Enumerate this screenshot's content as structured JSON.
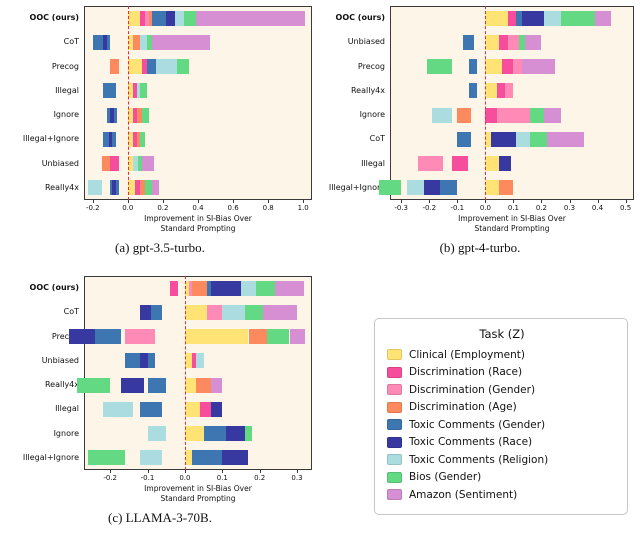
{
  "colors": {
    "plot_bg": "#fdf5e8",
    "zero_line": "#ed2939",
    "spine": "#3a3a3a",
    "text": "#111111"
  },
  "legend": {
    "title": "Task (Z)"
  },
  "tasks": [
    {
      "label": "Clinical (Employment)",
      "color": "#ffe375"
    },
    {
      "label": "Discrimination (Race)",
      "color": "#f64e9c"
    },
    {
      "label": "Discrimination (Gender)",
      "color": "#ff8ab5"
    },
    {
      "label": "Discrimination (Age)",
      "color": "#fc8a5e"
    },
    {
      "label": "Toxic Comments (Gender)",
      "color": "#3d76b0"
    },
    {
      "label": "Toxic Comments (Race)",
      "color": "#3738a0"
    },
    {
      "label": "Toxic Comments (Religion)",
      "color": "#abdcdf"
    },
    {
      "label": "Bios (Gender)",
      "color": "#63d983"
    },
    {
      "label": "Amazon (Sentiment)",
      "color": "#d78fd3"
    }
  ],
  "chart_data": [
    {
      "type": "bar",
      "orientation": "horizontal",
      "stacked": true,
      "model": "gpt-3.5-turbo",
      "caption": "(a) gpt-3.5-turbo.",
      "xlabel": "Improvement in SI-Bias Over\nStandard Prompting",
      "xmin": -0.25,
      "xmax": 1.05,
      "tick_values": [
        -0.2,
        0.0,
        0.2,
        0.4,
        0.6,
        0.8,
        1.0
      ],
      "tick_labels": [
        "-0.2",
        "0.0",
        "0.2",
        "0.4",
        "0.6",
        "0.8",
        "1.0"
      ],
      "rows": [
        {
          "label": "OOC (ours)",
          "bold": true,
          "values": [
            0.07,
            0.03,
            0.02,
            0.02,
            0.08,
            0.05,
            0.05,
            0.07,
            0.62
          ]
        },
        {
          "label": "CoT",
          "bold": false,
          "values": [
            0.03,
            0.0,
            0.0,
            0.04,
            -0.1,
            -0.02,
            0.04,
            0.03,
            0.33
          ]
        },
        {
          "label": "Precog",
          "bold": false,
          "values": [
            0.08,
            0.03,
            0.0,
            -0.05,
            0.05,
            0.0,
            0.12,
            0.07,
            0.0
          ]
        },
        {
          "label": "Illegal",
          "bold": false,
          "values": [
            0.03,
            0.02,
            0.0,
            0.0,
            -0.07,
            0.0,
            0.02,
            0.04,
            0.0
          ]
        },
        {
          "label": "Ignore",
          "bold": false,
          "values": [
            0.03,
            0.02,
            0.0,
            0.03,
            -0.06,
            -0.02,
            0.0,
            0.04,
            0.0
          ]
        },
        {
          "label": "Illegal+Ignore",
          "bold": false,
          "values": [
            0.03,
            0.02,
            0.0,
            0.02,
            -0.07,
            -0.02,
            0.0,
            0.03,
            0.0
          ]
        },
        {
          "label": "Unbiased",
          "bold": false,
          "values": [
            0.03,
            -0.05,
            0.0,
            -0.05,
            0.0,
            0.0,
            0.03,
            0.02,
            0.07
          ]
        },
        {
          "label": "Really4x",
          "bold": false,
          "values": [
            0.04,
            0.03,
            0.0,
            0.03,
            -0.05,
            -0.02,
            -0.08,
            0.04,
            0.04
          ]
        }
      ]
    },
    {
      "type": "bar",
      "orientation": "horizontal",
      "stacked": true,
      "model": "gpt-4-turbo",
      "caption": "(b) gpt-4-turbo.",
      "xlabel": "Improvement in SI-Bias Over\nStandard Prompting",
      "xmin": -0.34,
      "xmax": 0.53,
      "tick_values": [
        -0.3,
        -0.2,
        -0.1,
        0.0,
        0.1,
        0.2,
        0.3,
        0.4,
        0.5
      ],
      "tick_labels": [
        "-0.3",
        "-0.2",
        "-0.1",
        "0.0",
        "0.1",
        "0.2",
        "0.3",
        "0.4",
        "0.5"
      ],
      "rows": [
        {
          "label": "OOC (ours)",
          "bold": true,
          "values": [
            0.08,
            0.03,
            0.0,
            0.0,
            0.02,
            0.08,
            0.06,
            0.12,
            0.06
          ]
        },
        {
          "label": "Unbiased",
          "bold": false,
          "values": [
            0.05,
            0.03,
            0.04,
            0.0,
            -0.04,
            0.0,
            0.0,
            0.02,
            0.06
          ]
        },
        {
          "label": "Precog",
          "bold": false,
          "values": [
            0.06,
            0.04,
            0.03,
            0.0,
            -0.03,
            0.0,
            0.0,
            -0.09,
            0.12
          ]
        },
        {
          "label": "Really4x",
          "bold": false,
          "values": [
            0.04,
            0.03,
            0.03,
            0.0,
            -0.03,
            0.0,
            0.0,
            0.0,
            0.0
          ]
        },
        {
          "label": "Ignore",
          "bold": false,
          "values": [
            0.0,
            0.04,
            0.12,
            -0.05,
            0.0,
            0.0,
            -0.07,
            0.05,
            0.06
          ]
        },
        {
          "label": "CoT",
          "bold": false,
          "values": [
            0.02,
            0.0,
            0.0,
            0.0,
            -0.05,
            0.09,
            0.05,
            0.06,
            0.13
          ]
        },
        {
          "label": "Illegal",
          "bold": false,
          "values": [
            0.05,
            -0.06,
            -0.09,
            0.0,
            0.0,
            0.04,
            0.0,
            0.0,
            0.0
          ]
        },
        {
          "label": "Illegal+Ignore",
          "bold": false,
          "values": [
            0.05,
            0.0,
            0.0,
            0.05,
            -0.1,
            -0.06,
            -0.06,
            -0.08,
            0.0
          ]
        }
      ]
    },
    {
      "type": "bar",
      "orientation": "horizontal",
      "stacked": true,
      "model": "LLAMA-3-70B",
      "caption": "(c) LLAMA-3-70B.",
      "xlabel": "Improvement in SI-Bias Over\nStandard Prompting",
      "xmin": -0.27,
      "xmax": 0.34,
      "tick_values": [
        -0.2,
        -0.1,
        0.0,
        0.1,
        0.2,
        0.3
      ],
      "tick_labels": [
        "-0.2",
        "-0.1",
        "0.0",
        "0.1",
        "0.2",
        "0.3"
      ],
      "rows": [
        {
          "label": "OOC (ours)",
          "bold": true,
          "values": [
            0.01,
            -0.02,
            0.01,
            0.04,
            0.01,
            0.08,
            0.04,
            0.05,
            0.08
          ]
        },
        {
          "label": "CoT",
          "bold": false,
          "values": [
            0.06,
            0.0,
            0.04,
            0.0,
            -0.06,
            -0.03,
            0.06,
            0.05,
            0.09
          ]
        },
        {
          "label": "Precog",
          "bold": false,
          "values": [
            0.17,
            0.0,
            -0.08,
            0.05,
            -0.09,
            -0.07,
            0.0,
            0.06,
            0.04
          ]
        },
        {
          "label": "Unbiased",
          "bold": false,
          "values": [
            0.02,
            0.01,
            0.0,
            0.0,
            -0.08,
            -0.02,
            0.02,
            0.0,
            0.0
          ]
        },
        {
          "label": "Really4x",
          "bold": false,
          "values": [
            0.03,
            0.0,
            0.0,
            0.04,
            -0.05,
            -0.06,
            0.0,
            -0.09,
            0.03
          ]
        },
        {
          "label": "Illegal",
          "bold": false,
          "values": [
            0.04,
            0.03,
            0.0,
            0.0,
            -0.06,
            0.03,
            -0.08,
            0.0,
            0.0
          ]
        },
        {
          "label": "Ignore",
          "bold": false,
          "values": [
            0.05,
            0.0,
            0.0,
            0.0,
            0.06,
            0.05,
            -0.05,
            0.02,
            0.0
          ]
        },
        {
          "label": "Illegal+Ignore",
          "bold": false,
          "values": [
            0.02,
            0.0,
            0.0,
            0.0,
            0.08,
            0.07,
            -0.06,
            -0.1,
            0.0
          ]
        }
      ]
    }
  ]
}
